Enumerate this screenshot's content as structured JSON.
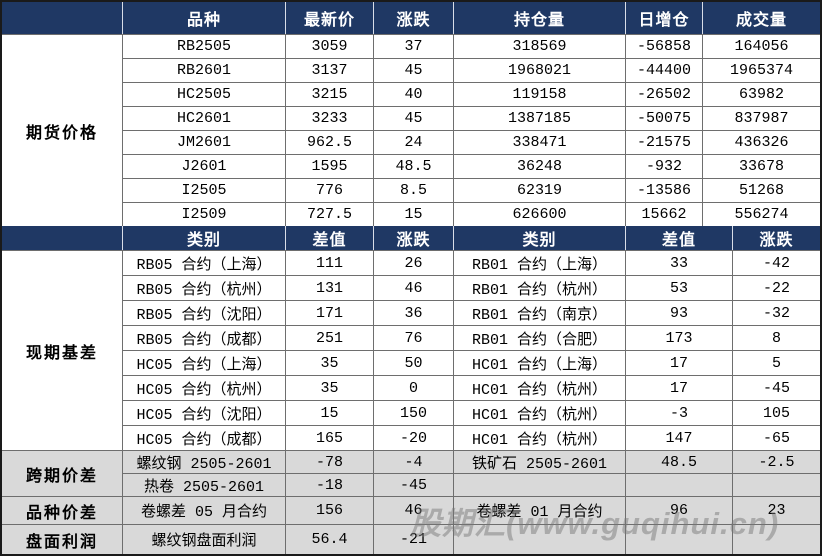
{
  "watermark": {
    "text": "股期汇(www.guqihui.cn)"
  },
  "colors": {
    "header_bg": "#1F3864",
    "header_text": "#FFFFFF",
    "body_bg": "#FFFFFF",
    "bottom_section_bg": "#D9D9D9",
    "grid_line": "#6E6E6E",
    "outer_border": "#1A1A1A",
    "watermark_color": "#787878"
  },
  "chart_data": [
    {
      "type": "table",
      "title": "期货价格",
      "columns": [
        "品种",
        "最新价",
        "涨跌",
        "持仓量",
        "日增仓",
        "成交量"
      ],
      "rows": [
        [
          "RB2505",
          3059,
          37,
          318569,
          -56858,
          164056
        ],
        [
          "RB2601",
          3137,
          45,
          1968021,
          -44400,
          1965374
        ],
        [
          "HC2505",
          3215,
          40,
          119158,
          -26502,
          63982
        ],
        [
          "HC2601",
          3233,
          45,
          1387185,
          -50075,
          837987
        ],
        [
          "JM2601",
          962.5,
          24,
          338471,
          -21575,
          436326
        ],
        [
          "J2601",
          1595,
          48.5,
          36248,
          -932,
          33678
        ],
        [
          "I2505",
          776,
          8.5,
          62319,
          -13586,
          51268
        ],
        [
          "I2509",
          727.5,
          15,
          626600,
          15662,
          556274
        ]
      ]
    },
    {
      "type": "table",
      "title": "现期基差",
      "columns": [
        "类别",
        "差值",
        "涨跌",
        "类别",
        "差值",
        "涨跌"
      ],
      "rows": [
        [
          "RB05 合约（上海）",
          111,
          26,
          "RB01 合约（上海）",
          33,
          -42
        ],
        [
          "RB05 合约（杭州）",
          131,
          46,
          "RB01 合约（杭州）",
          53,
          -22
        ],
        [
          "RB05 合约（沈阳）",
          171,
          36,
          "RB01 合约（南京）",
          93,
          -32
        ],
        [
          "RB05 合约（成都）",
          251,
          76,
          "RB01 合约（合肥）",
          173,
          8
        ],
        [
          "HC05 合约（上海）",
          35,
          50,
          "HC01 合约（上海）",
          17,
          5
        ],
        [
          "HC05 合约（杭州）",
          35,
          0,
          "HC01 合约（杭州）",
          17,
          -45
        ],
        [
          "HC05 合约（沈阳）",
          15,
          150,
          "HC01 合约（杭州）",
          -3,
          105
        ],
        [
          "HC05 合约（成都）",
          165,
          -20,
          "HC01 合约（杭州）",
          147,
          -65
        ]
      ]
    },
    {
      "type": "table",
      "title": "跨期价差",
      "rows": [
        [
          "螺纹钢 2505-2601",
          -78,
          -4,
          "铁矿石 2505-2601",
          48.5,
          -2.5
        ],
        [
          "热卷 2505-2601",
          -18,
          -45,
          "",
          "",
          ""
        ]
      ]
    },
    {
      "type": "table",
      "title": "品种价差",
      "rows": [
        [
          "卷螺差 05 月合约",
          156,
          46,
          "卷螺差 01 月合约",
          96,
          23
        ]
      ]
    },
    {
      "type": "table",
      "title": "盘面利润",
      "rows": [
        [
          "螺纹钢盘面利润",
          56.4,
          -21,
          "",
          "",
          ""
        ]
      ]
    }
  ]
}
